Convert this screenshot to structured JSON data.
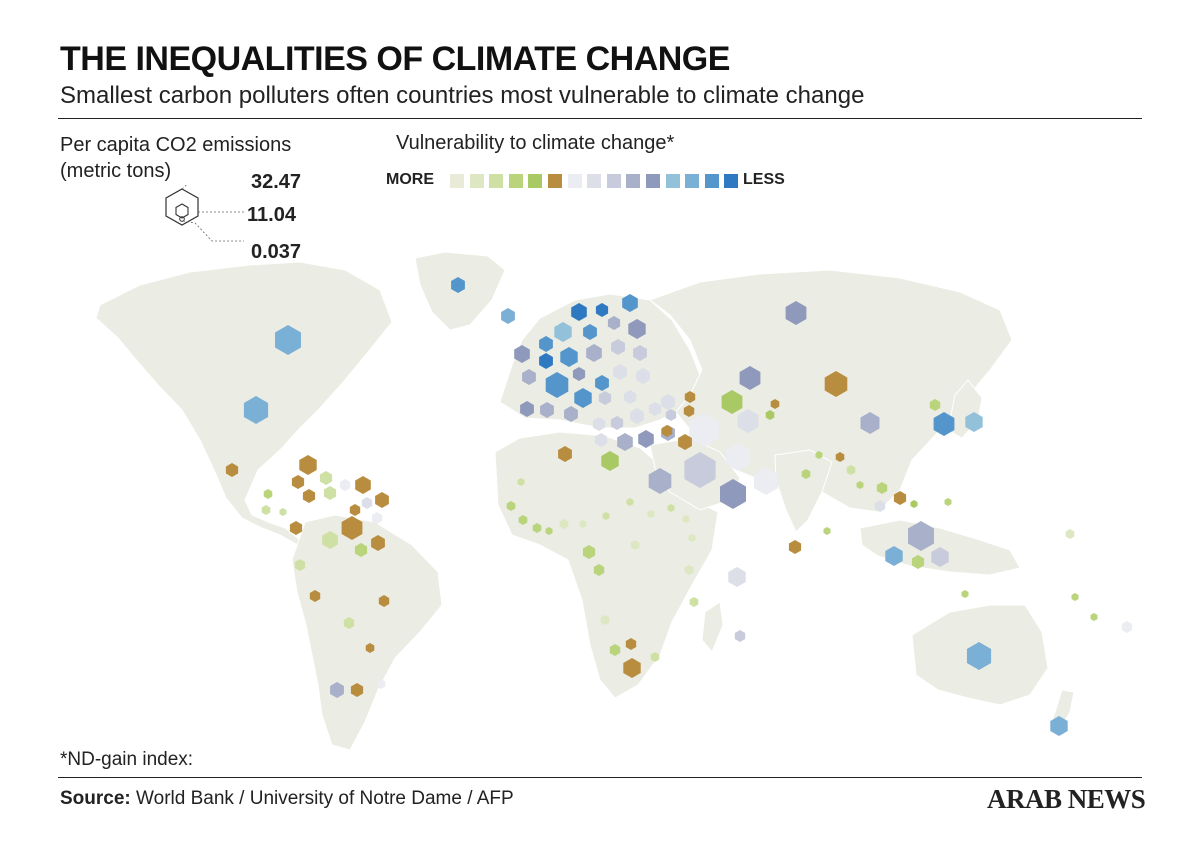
{
  "header": {
    "title": "THE INEQUALITIES OF CLIMATE CHANGE",
    "subtitle": "Smallest carbon polluters often countries most vulnerable to climate change"
  },
  "co2_legend": {
    "title_line1": "Per capita CO2 emissions",
    "title_line2": "(metric tons)",
    "values": [
      "32.47",
      "11.04",
      "0.037"
    ]
  },
  "vulnerability_legend": {
    "title": "Vulnerability to climate change*",
    "more_label": "MORE",
    "less_label": "LESS",
    "colors": [
      "#e9ebd8",
      "#dde7c2",
      "#cfe0a4",
      "#b9d47b",
      "#a9c964",
      "#b98d3f",
      "#ebedf2",
      "#dcdfe8",
      "#c7cbdb",
      "#a8b0ca",
      "#8f99bb",
      "#94c1da",
      "#7aafd6",
      "#5495cc",
      "#2f79c3"
    ]
  },
  "footnote": "*ND-gain index:",
  "source": {
    "label": "Source:",
    "text": "World Bank / University of Notre Dame / AFP"
  },
  "logo": "ARAB NEWS",
  "colors": {
    "land": "#ebece3",
    "land_stroke": "#ffffff",
    "accent_brown": "#b98d3f",
    "accent_green": "#a9c964",
    "accent_blue": "#2f79c3"
  }
}
